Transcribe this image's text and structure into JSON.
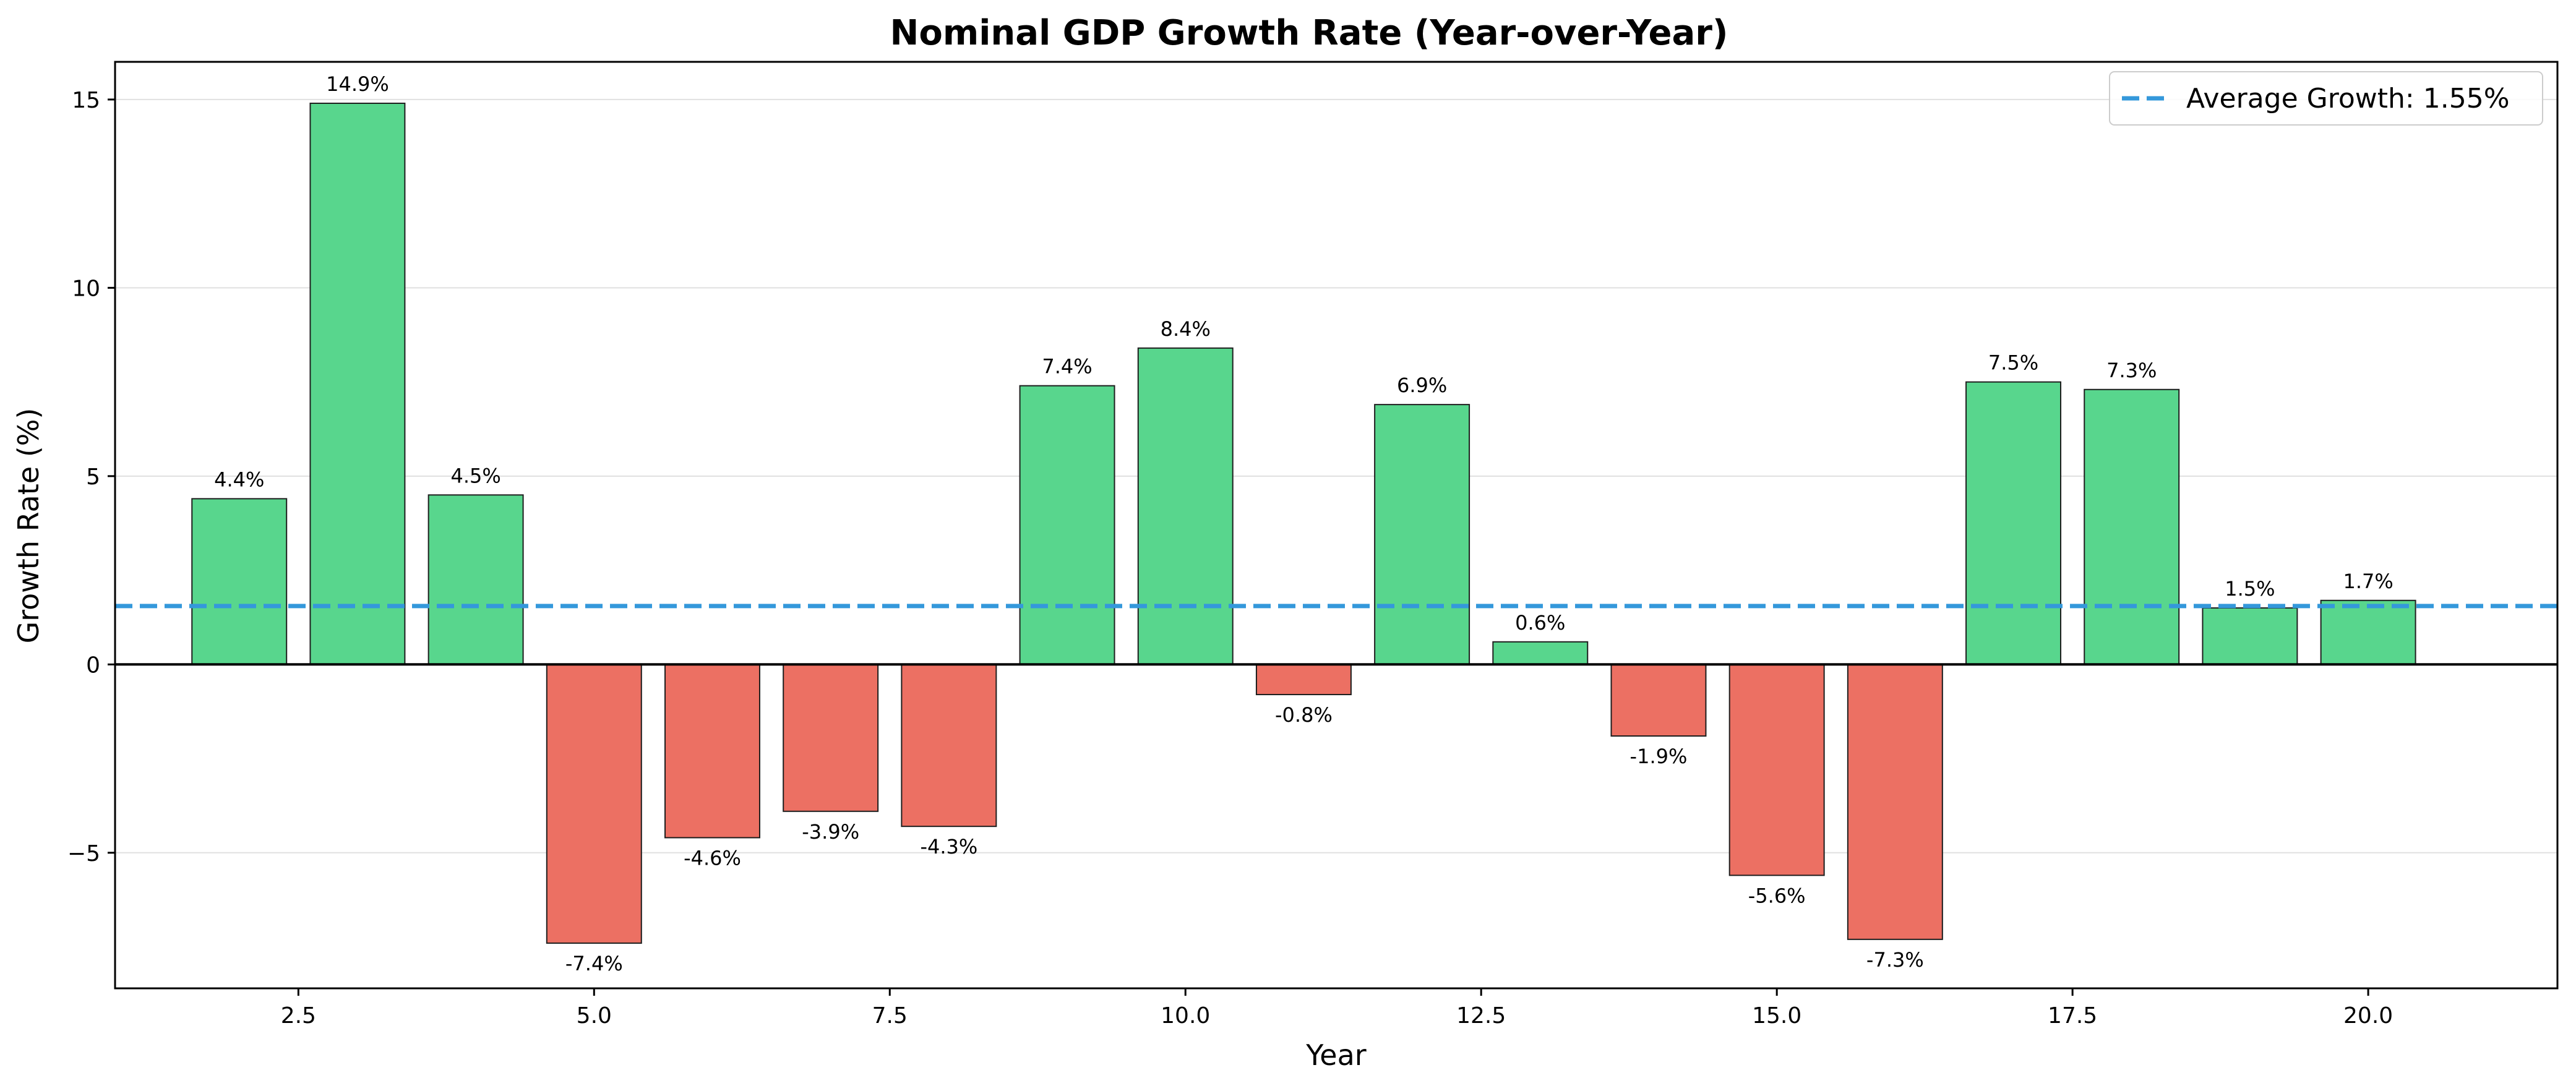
{
  "chart_data": {
    "type": "bar",
    "title": "Nominal GDP Growth Rate (Year-over-Year)",
    "xlabel": "Year",
    "ylabel": "Growth Rate (%)",
    "x": [
      2,
      3,
      4,
      5,
      6,
      7,
      8,
      9,
      10,
      11,
      12,
      13,
      14,
      15,
      16,
      17,
      18,
      19,
      20
    ],
    "values": [
      4.4,
      14.9,
      4.5,
      -7.4,
      -4.6,
      -3.9,
      -4.3,
      7.4,
      8.4,
      -0.8,
      6.9,
      0.6,
      -1.9,
      -5.6,
      -7.3,
      7.5,
      7.3,
      1.5,
      1.7
    ],
    "bar_labels": [
      "4.4%",
      "14.9%",
      "4.5%",
      "-7.4%",
      "-4.6%",
      "-3.9%",
      "-4.3%",
      "7.4%",
      "8.4%",
      "-0.8%",
      "6.9%",
      "0.6%",
      "-1.9%",
      "-5.6%",
      "-7.3%",
      "7.5%",
      "7.3%",
      "1.5%",
      "1.7%"
    ],
    "xlim": [
      0.95,
      21.6
    ],
    "ylim": [
      -8.6,
      16.0
    ],
    "xticks": [
      2.5,
      5.0,
      7.5,
      10.0,
      12.5,
      15.0,
      17.5,
      20.0
    ],
    "xtick_labels": [
      "2.5",
      "5.0",
      "7.5",
      "10.0",
      "12.5",
      "15.0",
      "17.5",
      "20.0"
    ],
    "yticks": [
      -5,
      0,
      5,
      10,
      15
    ],
    "ytick_labels": [
      "−5",
      "0",
      "5",
      "10",
      "15"
    ],
    "grid": "horizontal",
    "reference_line": {
      "value": 1.55,
      "style": "dashed"
    },
    "legend": {
      "position": "top-right",
      "entries": [
        "Average Growth: 1.55%"
      ]
    },
    "colors": {
      "positive": "#58d68d",
      "negative": "#ec7063",
      "average": "#3498db",
      "bar_edge": "#1e1e1e",
      "grid": "#e0e0e0"
    }
  }
}
